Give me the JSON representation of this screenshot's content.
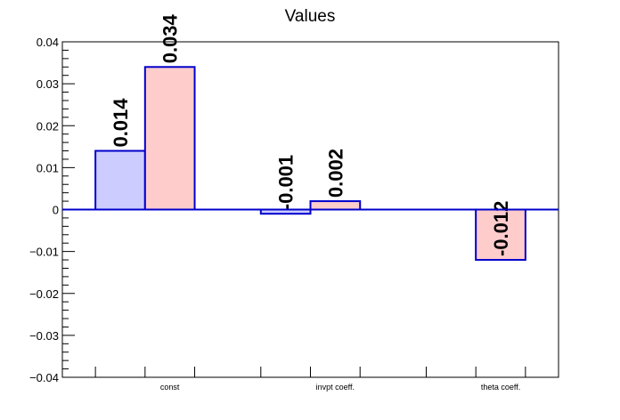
{
  "chart_data": {
    "type": "bar",
    "title": "Values",
    "categories": [
      "const",
      "invpt coeff.",
      "theta coeff."
    ],
    "series": [
      {
        "color": "#ccccff",
        "values": [
          0.014,
          -0.001,
          0
        ]
      },
      {
        "color": "#ffcccc",
        "values": [
          0.034,
          0.002,
          -0.012
        ]
      }
    ],
    "data_labels": [
      [
        "0.014",
        "-0.001",
        ""
      ],
      [
        "0.034",
        "0.002",
        "-0.012"
      ]
    ],
    "bar_outline_color": "#0000cc",
    "ylim": [
      -0.04,
      0.04
    ],
    "yticks": [
      -0.04,
      -0.03,
      -0.02,
      -0.01,
      0,
      0.01,
      0.02,
      0.03,
      0.04
    ],
    "ytick_labels": [
      "−0.04",
      "−0.03",
      "−0.02",
      "−0.01",
      "0",
      "0.01",
      "0.02",
      "0.03",
      "0.04"
    ],
    "xlabel": "",
    "ylabel": "",
    "grid": false,
    "legend": "none"
  }
}
